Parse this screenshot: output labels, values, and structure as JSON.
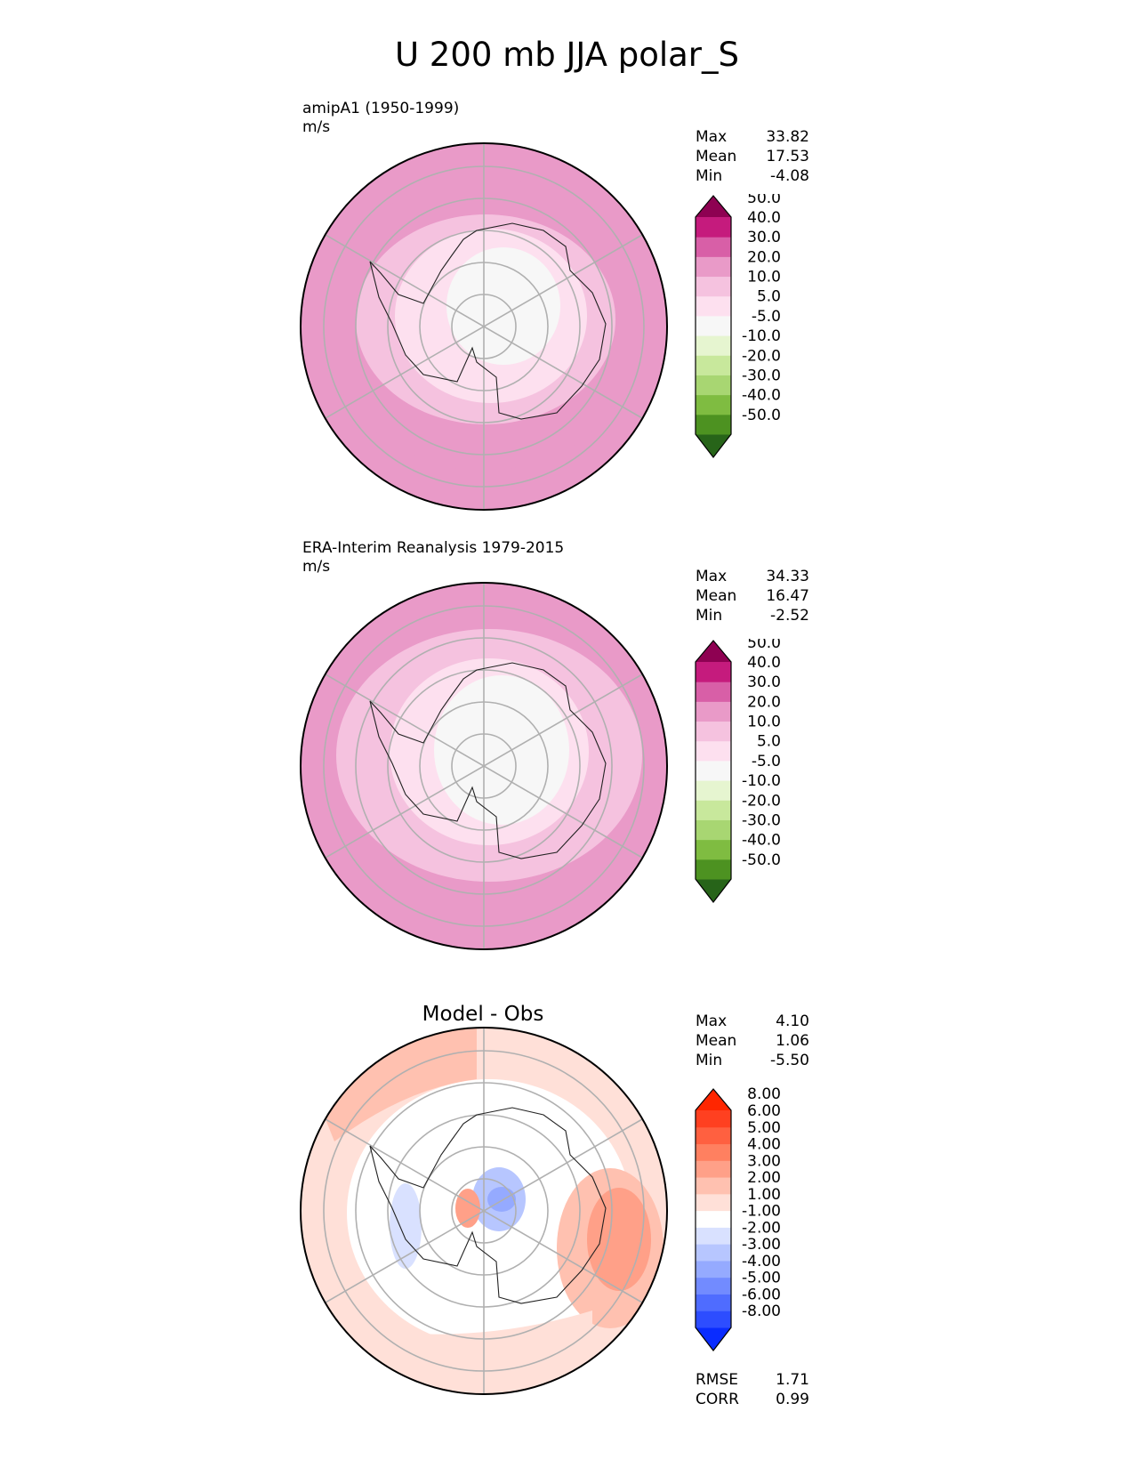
{
  "title": "U 200 mb JJA polar_S",
  "chart_data": [
    {
      "type": "heatmap",
      "projection": "south polar stereographic",
      "title": "amipA1 (1950-1999)",
      "units": "m/s",
      "stats": {
        "max_label": "Max",
        "max": "33.82",
        "mean_label": "Mean",
        "mean": "17.53",
        "min_label": "Min",
        "min": "-4.08"
      },
      "colorbar": {
        "ticks": [
          "-50.0",
          "-40.0",
          "-30.0",
          "-20.0",
          "-10.0",
          "-5.0",
          "5.0",
          "10.0",
          "20.0",
          "30.0",
          "40.0",
          "50.0"
        ],
        "colors": [
          "#276419",
          "#4d9221",
          "#7fbc41",
          "#a8d672",
          "#c8e89c",
          "#e6f5d0",
          "#f7f7f7",
          "#fde0ef",
          "#f5c2df",
          "#e99ac8",
          "#d85fa7",
          "#c51b7d",
          "#8e0152"
        ]
      }
    },
    {
      "type": "heatmap",
      "projection": "south polar stereographic",
      "title": "ERA-Interim Reanalysis 1979-2015",
      "units": "m/s",
      "stats": {
        "max_label": "Max",
        "max": "34.33",
        "mean_label": "Mean",
        "mean": "16.47",
        "min_label": "Min",
        "min": "-2.52"
      },
      "colorbar": {
        "ticks": [
          "-50.0",
          "-40.0",
          "-30.0",
          "-20.0",
          "-10.0",
          "-5.0",
          "5.0",
          "10.0",
          "20.0",
          "30.0",
          "40.0",
          "50.0"
        ],
        "colors": [
          "#276419",
          "#4d9221",
          "#7fbc41",
          "#a8d672",
          "#c8e89c",
          "#e6f5d0",
          "#f7f7f7",
          "#fde0ef",
          "#f5c2df",
          "#e99ac8",
          "#d85fa7",
          "#c51b7d",
          "#8e0152"
        ]
      }
    },
    {
      "type": "heatmap",
      "projection": "south polar stereographic",
      "title": "Model - Obs",
      "stats": {
        "max_label": "Max",
        "max": "4.10",
        "mean_label": "Mean",
        "mean": "1.06",
        "min_label": "Min",
        "min": "-5.50"
      },
      "rmse_label": "RMSE",
      "rmse": "1.71",
      "corr_label": "CORR",
      "corr": "0.99",
      "colorbar": {
        "ticks": [
          "-8.00",
          "-6.00",
          "-5.00",
          "-4.00",
          "-3.00",
          "-2.00",
          "-1.00",
          "1.00",
          "2.00",
          "3.00",
          "4.00",
          "5.00",
          "6.00",
          "8.00"
        ],
        "colors": [
          "#0a2cff",
          "#2d4dff",
          "#4f6cff",
          "#728bff",
          "#95aaff",
          "#b7c6ff",
          "#d9e1ff",
          "#ffffff",
          "#ffe0d8",
          "#ffc1b0",
          "#ffa088",
          "#ff8060",
          "#ff6040",
          "#ff4020",
          "#ff2600"
        ]
      }
    }
  ]
}
